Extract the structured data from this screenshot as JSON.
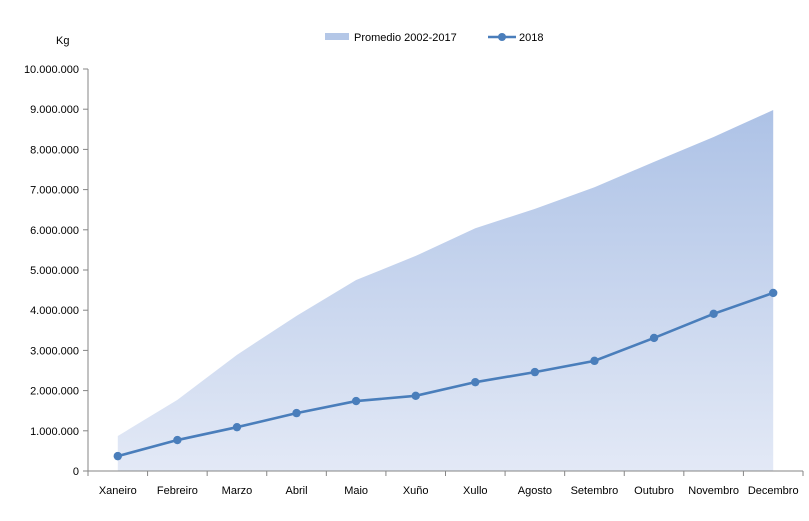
{
  "chart_data": {
    "type": "line",
    "ylabel": "Kg",
    "ylim": [
      0,
      10000000
    ],
    "yticks": [
      "0",
      "1.000.000",
      "2.000.000",
      "3.000.000",
      "4.000.000",
      "5.000.000",
      "6.000.000",
      "7.000.000",
      "8.000.000",
      "9.000.000",
      "10.000.000"
    ],
    "grid": false,
    "legend_placement": "top",
    "categories": [
      "Xaneiro",
      "Febreiro",
      "Marzo",
      "Abril",
      "Maio",
      "Xuño",
      "Xullo",
      "Agosto",
      "Setembro",
      "Outubro",
      "Novembro",
      "Decembro"
    ],
    "series": [
      {
        "name": "Promedio 2002-2017",
        "kind": "area",
        "color": "#b4c7e7",
        "values": [
          870000,
          1770000,
          2890000,
          3860000,
          4750000,
          5350000,
          6040000,
          6520000,
          7060000,
          7690000,
          8310000,
          8980000
        ]
      },
      {
        "name": "2018",
        "kind": "line-markers",
        "color": "#4a7ebb",
        "values": [
          370000,
          770000,
          1090000,
          1440000,
          1740000,
          1870000,
          2210000,
          2460000,
          2740000,
          3310000,
          3910000,
          4430000
        ]
      }
    ]
  }
}
